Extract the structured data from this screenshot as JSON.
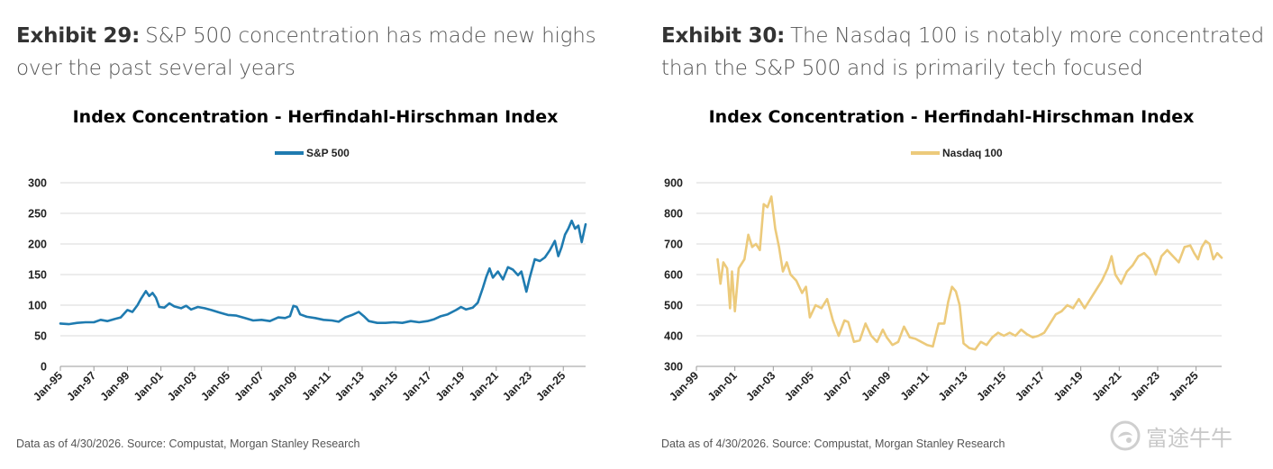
{
  "exhibits": [
    {
      "number": "Exhibit 29:",
      "title": "S&P 500 concentration has made new highs over the past several years",
      "source": "Data as of 4/30/2026. Source: Compustat, Morgan Stanley Research"
    },
    {
      "number": "Exhibit 30:",
      "title": "The Nasdaq 100 is notably more concentrated than the S&P 500 and is primarily tech focused",
      "source": "Data as of 4/30/2026. Source: Compustat, Morgan Stanley Research"
    }
  ],
  "watermark": {
    "text": "富途牛牛",
    "icon": "futu-logo-icon"
  },
  "chart_data": [
    {
      "type": "line",
      "title": "Index Concentration - Herfindahl-Hirschman Index",
      "xlabel": "",
      "ylabel": "",
      "xlim": [
        1995.0,
        2026.33
      ],
      "ylim": [
        0,
        300
      ],
      "yticks": [
        0,
        50,
        100,
        150,
        200,
        250,
        300
      ],
      "xticks": [
        {
          "label": "Jan-95",
          "x": 1995
        },
        {
          "label": "Jan-97",
          "x": 1997
        },
        {
          "label": "Jan-99",
          "x": 1999
        },
        {
          "label": "Jan-01",
          "x": 2001
        },
        {
          "label": "Jan-03",
          "x": 2003
        },
        {
          "label": "Jan-05",
          "x": 2005
        },
        {
          "label": "Jan-07",
          "x": 2007
        },
        {
          "label": "Jan-09",
          "x": 2009
        },
        {
          "label": "Jan-11",
          "x": 2011
        },
        {
          "label": "Jan-13",
          "x": 2013
        },
        {
          "label": "Jan-15",
          "x": 2015
        },
        {
          "label": "Jan-17",
          "x": 2017
        },
        {
          "label": "Jan-19",
          "x": 2019
        },
        {
          "label": "Jan-21",
          "x": 2021
        },
        {
          "label": "Jan-23",
          "x": 2023
        },
        {
          "label": "Jan-25",
          "x": 2025
        }
      ],
      "grid": true,
      "legend_position": "top-center",
      "series": [
        {
          "name": "S&P 500",
          "color": "#1f7bb0",
          "points": [
            [
              1995.0,
              70
            ],
            [
              1995.5,
              69
            ],
            [
              1996.0,
              71
            ],
            [
              1996.5,
              72
            ],
            [
              1997.0,
              72
            ],
            [
              1997.4,
              76
            ],
            [
              1997.8,
              74
            ],
            [
              1998.2,
              77
            ],
            [
              1998.6,
              80
            ],
            [
              1999.0,
              92
            ],
            [
              1999.3,
              89
            ],
            [
              1999.6,
              100
            ],
            [
              1999.8,
              110
            ],
            [
              2000.1,
              123
            ],
            [
              2000.3,
              115
            ],
            [
              2000.5,
              120
            ],
            [
              2000.7,
              112
            ],
            [
              2000.9,
              97
            ],
            [
              2001.2,
              96
            ],
            [
              2001.5,
              103
            ],
            [
              2001.8,
              98
            ],
            [
              2002.2,
              95
            ],
            [
              2002.5,
              99
            ],
            [
              2002.8,
              93
            ],
            [
              2003.2,
              97
            ],
            [
              2003.6,
              95
            ],
            [
              2004.0,
              92
            ],
            [
              2004.5,
              88
            ],
            [
              2005.0,
              84
            ],
            [
              2005.5,
              83
            ],
            [
              2006.0,
              79
            ],
            [
              2006.5,
              75
            ],
            [
              2007.0,
              76
            ],
            [
              2007.5,
              74
            ],
            [
              2008.0,
              80
            ],
            [
              2008.4,
              79
            ],
            [
              2008.7,
              82
            ],
            [
              2008.9,
              99
            ],
            [
              2009.1,
              97
            ],
            [
              2009.3,
              85
            ],
            [
              2009.7,
              81
            ],
            [
              2010.2,
              79
            ],
            [
              2010.7,
              76
            ],
            [
              2011.2,
              75
            ],
            [
              2011.6,
              73
            ],
            [
              2012.0,
              80
            ],
            [
              2012.4,
              84
            ],
            [
              2012.8,
              89
            ],
            [
              2013.1,
              82
            ],
            [
              2013.4,
              74
            ],
            [
              2013.9,
              71
            ],
            [
              2014.4,
              71
            ],
            [
              2014.9,
              72
            ],
            [
              2015.4,
              71
            ],
            [
              2015.9,
              74
            ],
            [
              2016.4,
              72
            ],
            [
              2016.9,
              74
            ],
            [
              2017.3,
              77
            ],
            [
              2017.7,
              82
            ],
            [
              2018.1,
              85
            ],
            [
              2018.6,
              92
            ],
            [
              2018.9,
              97
            ],
            [
              2019.2,
              93
            ],
            [
              2019.6,
              96
            ],
            [
              2019.9,
              104
            ],
            [
              2020.2,
              128
            ],
            [
              2020.4,
              146
            ],
            [
              2020.6,
              160
            ],
            [
              2020.8,
              145
            ],
            [
              2021.1,
              155
            ],
            [
              2021.4,
              142
            ],
            [
              2021.7,
              162
            ],
            [
              2022.0,
              158
            ],
            [
              2022.3,
              149
            ],
            [
              2022.5,
              155
            ],
            [
              2022.8,
              122
            ],
            [
              2023.0,
              145
            ],
            [
              2023.3,
              175
            ],
            [
              2023.6,
              172
            ],
            [
              2023.9,
              178
            ],
            [
              2024.2,
              190
            ],
            [
              2024.5,
              205
            ],
            [
              2024.7,
              180
            ],
            [
              2024.9,
              195
            ],
            [
              2025.1,
              215
            ],
            [
              2025.3,
              225
            ],
            [
              2025.5,
              238
            ],
            [
              2025.7,
              225
            ],
            [
              2025.9,
              230
            ],
            [
              2026.1,
              203
            ],
            [
              2026.33,
              232
            ]
          ]
        }
      ]
    },
    {
      "type": "line",
      "title": "Index Concentration - Herfindahl-Hirschman Index",
      "xlabel": "",
      "ylabel": "",
      "xlim": [
        1999.0,
        2026.33
      ],
      "ylim": [
        300,
        900
      ],
      "yticks": [
        300,
        400,
        500,
        600,
        700,
        800,
        900
      ],
      "xticks": [
        {
          "label": "Jan-99",
          "x": 1999
        },
        {
          "label": "Jan-01",
          "x": 2001
        },
        {
          "label": "Jan-03",
          "x": 2003
        },
        {
          "label": "Jan-05",
          "x": 2005
        },
        {
          "label": "Jan-07",
          "x": 2007
        },
        {
          "label": "Jan-09",
          "x": 2009
        },
        {
          "label": "Jan-11",
          "x": 2011
        },
        {
          "label": "Jan-13",
          "x": 2013
        },
        {
          "label": "Jan-15",
          "x": 2015
        },
        {
          "label": "Jan-17",
          "x": 2017
        },
        {
          "label": "Jan-19",
          "x": 2019
        },
        {
          "label": "Jan-21",
          "x": 2021
        },
        {
          "label": "Jan-23",
          "x": 2023
        },
        {
          "label": "Jan-25",
          "x": 2025
        }
      ],
      "grid": true,
      "legend_position": "top-center",
      "series": [
        {
          "name": "Nasdaq 100",
          "color": "#ecca7b",
          "points": [
            [
              2000.1,
              650
            ],
            [
              2000.25,
              570
            ],
            [
              2000.4,
              640
            ],
            [
              2000.6,
              620
            ],
            [
              2000.75,
              490
            ],
            [
              2000.85,
              610
            ],
            [
              2001.0,
              480
            ],
            [
              2001.2,
              620
            ],
            [
              2001.5,
              650
            ],
            [
              2001.7,
              730
            ],
            [
              2001.9,
              690
            ],
            [
              2002.1,
              700
            ],
            [
              2002.3,
              680
            ],
            [
              2002.5,
              830
            ],
            [
              2002.7,
              820
            ],
            [
              2002.9,
              855
            ],
            [
              2003.1,
              750
            ],
            [
              2003.3,
              690
            ],
            [
              2003.5,
              610
            ],
            [
              2003.7,
              640
            ],
            [
              2003.9,
              600
            ],
            [
              2004.2,
              580
            ],
            [
              2004.5,
              540
            ],
            [
              2004.7,
              560
            ],
            [
              2004.9,
              460
            ],
            [
              2005.2,
              500
            ],
            [
              2005.5,
              490
            ],
            [
              2005.8,
              520
            ],
            [
              2006.1,
              450
            ],
            [
              2006.4,
              400
            ],
            [
              2006.7,
              450
            ],
            [
              2006.9,
              445
            ],
            [
              2007.2,
              380
            ],
            [
              2007.5,
              385
            ],
            [
              2007.8,
              440
            ],
            [
              2008.1,
              400
            ],
            [
              2008.4,
              380
            ],
            [
              2008.7,
              420
            ],
            [
              2008.9,
              395
            ],
            [
              2009.2,
              370
            ],
            [
              2009.5,
              380
            ],
            [
              2009.8,
              430
            ],
            [
              2010.1,
              395
            ],
            [
              2010.4,
              390
            ],
            [
              2010.7,
              380
            ],
            [
              2011.0,
              370
            ],
            [
              2011.3,
              365
            ],
            [
              2011.6,
              440
            ],
            [
              2011.9,
              440
            ],
            [
              2012.1,
              510
            ],
            [
              2012.3,
              560
            ],
            [
              2012.5,
              545
            ],
            [
              2012.7,
              500
            ],
            [
              2012.9,
              375
            ],
            [
              2013.2,
              360
            ],
            [
              2013.5,
              355
            ],
            [
              2013.8,
              380
            ],
            [
              2014.1,
              370
            ],
            [
              2014.4,
              395
            ],
            [
              2014.7,
              410
            ],
            [
              2015.0,
              400
            ],
            [
              2015.3,
              410
            ],
            [
              2015.6,
              400
            ],
            [
              2015.9,
              420
            ],
            [
              2016.2,
              405
            ],
            [
              2016.5,
              395
            ],
            [
              2016.8,
              400
            ],
            [
              2017.1,
              410
            ],
            [
              2017.4,
              440
            ],
            [
              2017.7,
              470
            ],
            [
              2018.0,
              480
            ],
            [
              2018.3,
              500
            ],
            [
              2018.6,
              490
            ],
            [
              2018.9,
              520
            ],
            [
              2019.2,
              490
            ],
            [
              2019.5,
              520
            ],
            [
              2019.8,
              550
            ],
            [
              2020.1,
              580
            ],
            [
              2020.4,
              620
            ],
            [
              2020.6,
              660
            ],
            [
              2020.8,
              600
            ],
            [
              2021.1,
              570
            ],
            [
              2021.4,
              610
            ],
            [
              2021.7,
              630
            ],
            [
              2022.0,
              660
            ],
            [
              2022.3,
              670
            ],
            [
              2022.6,
              650
            ],
            [
              2022.9,
              600
            ],
            [
              2023.2,
              660
            ],
            [
              2023.5,
              680
            ],
            [
              2023.8,
              660
            ],
            [
              2024.1,
              640
            ],
            [
              2024.4,
              690
            ],
            [
              2024.7,
              695
            ],
            [
              2024.9,
              670
            ],
            [
              2025.1,
              650
            ],
            [
              2025.3,
              690
            ],
            [
              2025.5,
              710
            ],
            [
              2025.7,
              700
            ],
            [
              2025.9,
              650
            ],
            [
              2026.1,
              670
            ],
            [
              2026.33,
              655
            ]
          ]
        }
      ]
    }
  ]
}
